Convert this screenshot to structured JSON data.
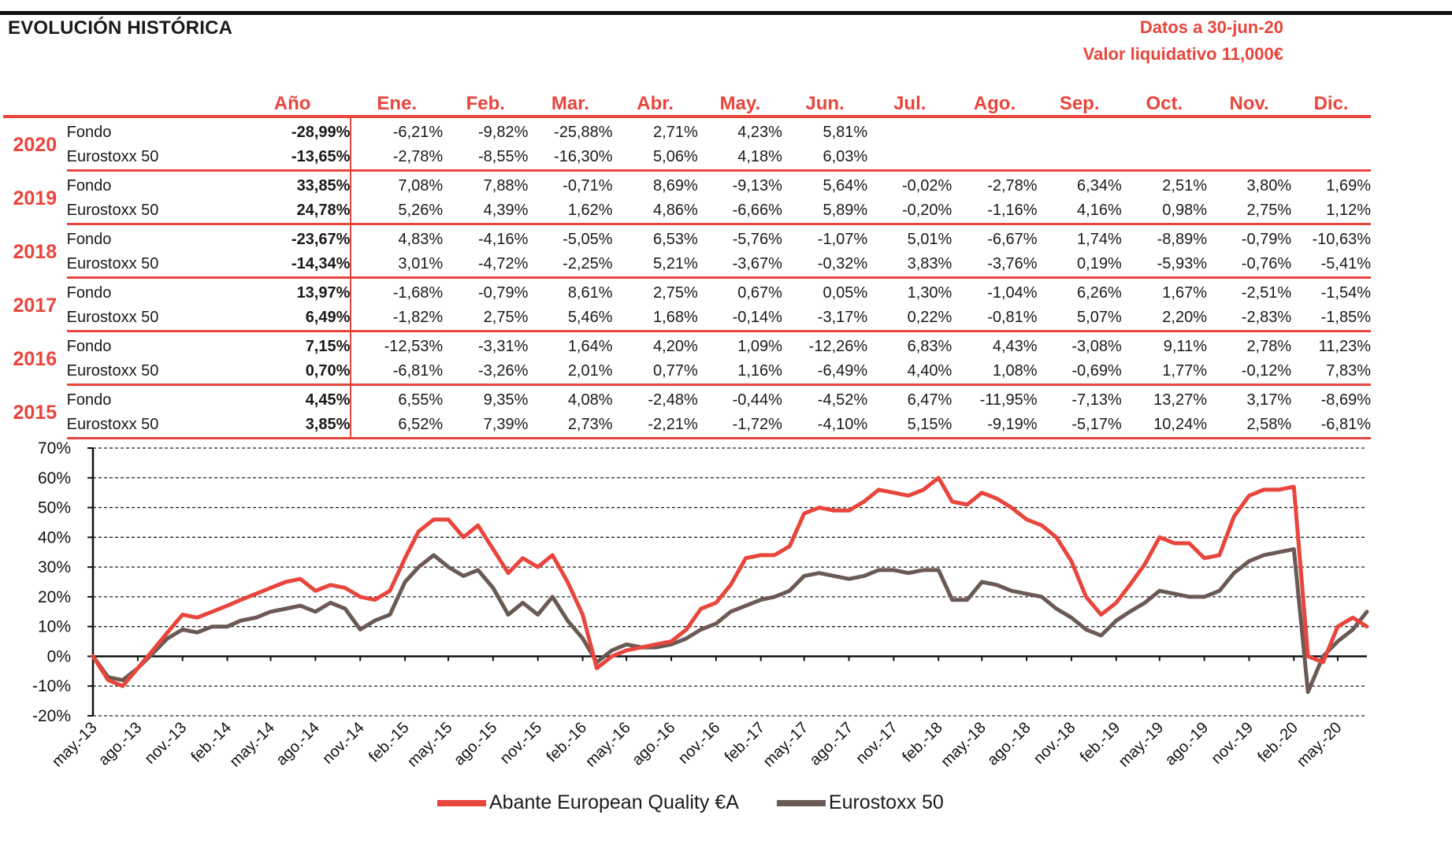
{
  "header": {
    "title": "EVOLUCIÓN HISTÓRICA",
    "date_text": "Datos a 30-jun-20",
    "nav_text": "Valor liquidativo 11,000€"
  },
  "table": {
    "columns": [
      "Año",
      "Ene.",
      "Feb.",
      "Mar.",
      "Abr.",
      "May.",
      "Jun.",
      "Jul.",
      "Ago.",
      "Sep.",
      "Oct.",
      "Nov.",
      "Dic."
    ],
    "years": [
      {
        "year": "2020",
        "rows": [
          {
            "label": "Fondo",
            "annual": "-28,99%",
            "months": [
              "-6,21%",
              "-9,82%",
              "-25,88%",
              "2,71%",
              "4,23%",
              "5,81%",
              "",
              "",
              "",
              "",
              "",
              ""
            ]
          },
          {
            "label": "Eurostoxx 50",
            "annual": "-13,65%",
            "months": [
              "-2,78%",
              "-8,55%",
              "-16,30%",
              "5,06%",
              "4,18%",
              "6,03%",
              "",
              "",
              "",
              "",
              "",
              ""
            ]
          }
        ]
      },
      {
        "year": "2019",
        "rows": [
          {
            "label": "Fondo",
            "annual": "33,85%",
            "months": [
              "7,08%",
              "7,88%",
              "-0,71%",
              "8,69%",
              "-9,13%",
              "5,64%",
              "-0,02%",
              "-2,78%",
              "6,34%",
              "2,51%",
              "3,80%",
              "1,69%"
            ]
          },
          {
            "label": "Eurostoxx 50",
            "annual": "24,78%",
            "months": [
              "5,26%",
              "4,39%",
              "1,62%",
              "4,86%",
              "-6,66%",
              "5,89%",
              "-0,20%",
              "-1,16%",
              "4,16%",
              "0,98%",
              "2,75%",
              "1,12%"
            ]
          }
        ]
      },
      {
        "year": "2018",
        "rows": [
          {
            "label": "Fondo",
            "annual": "-23,67%",
            "months": [
              "4,83%",
              "-4,16%",
              "-5,05%",
              "6,53%",
              "-5,76%",
              "-1,07%",
              "5,01%",
              "-6,67%",
              "1,74%",
              "-8,89%",
              "-0,79%",
              "-10,63%"
            ]
          },
          {
            "label": "Eurostoxx 50",
            "annual": "-14,34%",
            "months": [
              "3,01%",
              "-4,72%",
              "-2,25%",
              "5,21%",
              "-3,67%",
              "-0,32%",
              "3,83%",
              "-3,76%",
              "0,19%",
              "-5,93%",
              "-0,76%",
              "-5,41%"
            ]
          }
        ]
      },
      {
        "year": "2017",
        "rows": [
          {
            "label": "Fondo",
            "annual": "13,97%",
            "months": [
              "-1,68%",
              "-0,79%",
              "8,61%",
              "2,75%",
              "0,67%",
              "0,05%",
              "1,30%",
              "-1,04%",
              "6,26%",
              "1,67%",
              "-2,51%",
              "-1,54%"
            ]
          },
          {
            "label": "Eurostoxx 50",
            "annual": "6,49%",
            "months": [
              "-1,82%",
              "2,75%",
              "5,46%",
              "1,68%",
              "-0,14%",
              "-3,17%",
              "0,22%",
              "-0,81%",
              "5,07%",
              "2,20%",
              "-2,83%",
              "-1,85%"
            ]
          }
        ]
      },
      {
        "year": "2016",
        "rows": [
          {
            "label": "Fondo",
            "annual": "7,15%",
            "months": [
              "-12,53%",
              "-3,31%",
              "1,64%",
              "4,20%",
              "1,09%",
              "-12,26%",
              "6,83%",
              "4,43%",
              "-3,08%",
              "9,11%",
              "2,78%",
              "11,23%"
            ]
          },
          {
            "label": "Eurostoxx 50",
            "annual": "0,70%",
            "months": [
              "-6,81%",
              "-3,26%",
              "2,01%",
              "0,77%",
              "1,16%",
              "-6,49%",
              "4,40%",
              "1,08%",
              "-0,69%",
              "1,77%",
              "-0,12%",
              "7,83%"
            ]
          }
        ]
      },
      {
        "year": "2015",
        "rows": [
          {
            "label": "Fondo",
            "annual": "4,45%",
            "months": [
              "6,55%",
              "9,35%",
              "4,08%",
              "-2,48%",
              "-0,44%",
              "-4,52%",
              "6,47%",
              "-11,95%",
              "-7,13%",
              "13,27%",
              "3,17%",
              "-8,69%"
            ]
          },
          {
            "label": "Eurostoxx 50",
            "annual": "3,85%",
            "months": [
              "6,52%",
              "7,39%",
              "2,73%",
              "-2,21%",
              "-1,72%",
              "-4,10%",
              "5,15%",
              "-9,19%",
              "-5,17%",
              "10,24%",
              "2,58%",
              "-6,81%"
            ]
          }
        ]
      }
    ]
  },
  "chart_data": {
    "type": "line",
    "ylim": [
      -20,
      70
    ],
    "yticks": [
      -20,
      -10,
      0,
      10,
      20,
      30,
      40,
      50,
      60,
      70
    ],
    "ytick_labels": [
      "-20%",
      "-10%",
      "0%",
      "10%",
      "20%",
      "30%",
      "40%",
      "50%",
      "60%",
      "70%"
    ],
    "xlim": [
      "2013-05-01",
      "2020-06-30"
    ],
    "xtick_dates": [
      "2013-05-01",
      "2013-08-01",
      "2013-11-01",
      "2014-02-01",
      "2014-05-01",
      "2014-08-01",
      "2014-11-01",
      "2015-02-01",
      "2015-05-01",
      "2015-08-01",
      "2015-11-01",
      "2016-02-01",
      "2016-05-01",
      "2016-08-01",
      "2016-11-01",
      "2017-02-01",
      "2017-05-01",
      "2017-08-01",
      "2017-11-01",
      "2018-02-01",
      "2018-05-01",
      "2018-08-01",
      "2018-11-01",
      "2019-02-01",
      "2019-05-01",
      "2019-08-01",
      "2019-11-01",
      "2020-02-01",
      "2020-05-01"
    ],
    "xtick_labels": [
      "may.-13",
      "ago.-13",
      "nov.-13",
      "feb.-14",
      "may.-14",
      "ago.-14",
      "nov.-14",
      "feb.-15",
      "may.-15",
      "ago.-15",
      "nov.-15",
      "feb.-16",
      "may.-16",
      "ago.-16",
      "nov.-16",
      "feb.-17",
      "may.-17",
      "ago.-17",
      "nov.-17",
      "feb.-18",
      "may.-18",
      "ago.-18",
      "nov.-18",
      "feb.-19",
      "may.-19",
      "ago.-19",
      "nov.-19",
      "feb.-20",
      "may.-20"
    ],
    "grid": "horizontal-dashed",
    "legend_position": "bottom",
    "x": [
      "2013-05-01",
      "2013-06-01",
      "2013-07-01",
      "2013-08-01",
      "2013-09-01",
      "2013-10-01",
      "2013-11-01",
      "2013-12-01",
      "2014-01-01",
      "2014-02-01",
      "2014-03-01",
      "2014-04-01",
      "2014-05-01",
      "2014-06-01",
      "2014-07-01",
      "2014-08-01",
      "2014-09-01",
      "2014-10-01",
      "2014-11-01",
      "2014-12-01",
      "2015-01-01",
      "2015-02-01",
      "2015-03-01",
      "2015-04-01",
      "2015-05-01",
      "2015-06-01",
      "2015-07-01",
      "2015-08-01",
      "2015-09-01",
      "2015-10-01",
      "2015-11-01",
      "2015-12-01",
      "2016-01-01",
      "2016-02-01",
      "2016-03-01",
      "2016-04-01",
      "2016-05-01",
      "2016-06-01",
      "2016-07-01",
      "2016-08-01",
      "2016-09-01",
      "2016-10-01",
      "2016-11-01",
      "2016-12-01",
      "2017-01-01",
      "2017-02-01",
      "2017-03-01",
      "2017-04-01",
      "2017-05-01",
      "2017-06-01",
      "2017-07-01",
      "2017-08-01",
      "2017-09-01",
      "2017-10-01",
      "2017-11-01",
      "2017-12-01",
      "2018-01-01",
      "2018-02-01",
      "2018-03-01",
      "2018-04-01",
      "2018-05-01",
      "2018-06-01",
      "2018-07-01",
      "2018-08-01",
      "2018-09-01",
      "2018-10-01",
      "2018-11-01",
      "2018-12-01",
      "2019-01-01",
      "2019-02-01",
      "2019-03-01",
      "2019-04-01",
      "2019-05-01",
      "2019-06-01",
      "2019-07-01",
      "2019-08-01",
      "2019-09-01",
      "2019-10-01",
      "2019-11-01",
      "2019-12-01",
      "2020-01-01",
      "2020-02-01",
      "2020-03-01",
      "2020-04-01",
      "2020-05-01",
      "2020-06-01",
      "2020-06-30"
    ],
    "series": [
      {
        "name": "Abante European Quality €A",
        "color": "#e8453c",
        "values": [
          0,
          -8,
          -10,
          -4,
          2,
          8,
          14,
          13,
          15,
          17,
          19,
          21,
          23,
          25,
          26,
          22,
          24,
          23,
          20,
          19,
          22,
          33,
          42,
          46,
          46,
          40,
          44,
          36,
          28,
          33,
          30,
          34,
          25,
          14,
          -4,
          0,
          2,
          3,
          4,
          5,
          9,
          16,
          18,
          24,
          33,
          34,
          34,
          37,
          48,
          50,
          49,
          49,
          52,
          56,
          55,
          54,
          56,
          60,
          52,
          51,
          55,
          53,
          50,
          46,
          44,
          40,
          32,
          20,
          14,
          18,
          24,
          31,
          40,
          38,
          38,
          33,
          34,
          47,
          54,
          56,
          56,
          57,
          0,
          -2,
          10,
          13,
          10
        ]
      },
      {
        "name": "Eurostoxx 50",
        "color": "#6b5a54",
        "values": [
          0,
          -7,
          -8,
          -4,
          1,
          6,
          9,
          8,
          10,
          10,
          12,
          13,
          15,
          16,
          17,
          15,
          18,
          16,
          9,
          12,
          14,
          25,
          30,
          34,
          30,
          27,
          29,
          23,
          14,
          18,
          14,
          20,
          12,
          6,
          -2,
          2,
          4,
          3,
          3,
          4,
          6,
          9,
          11,
          15,
          17,
          19,
          20,
          22,
          27,
          28,
          27,
          26,
          27,
          29,
          29,
          28,
          29,
          29,
          19,
          19,
          25,
          24,
          22,
          21,
          20,
          16,
          13,
          9,
          7,
          12,
          15,
          18,
          22,
          21,
          20,
          20,
          22,
          28,
          32,
          34,
          35,
          36,
          -12,
          0,
          5,
          9,
          15
        ]
      }
    ]
  }
}
